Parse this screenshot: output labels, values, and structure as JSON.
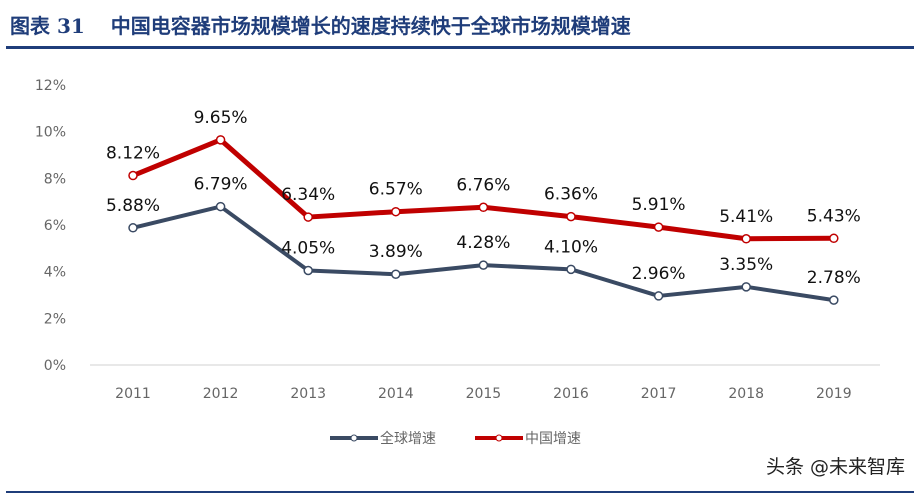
{
  "header": {
    "figure_label": "图表 31",
    "title": "中国电容器市场规模增长的速度持续快于全球市场规模增速"
  },
  "watermark": "头条 @未来智库",
  "chart_data": {
    "type": "line",
    "title": "中国电容器市场规模增长的速度持续快于全球市场规模增速",
    "xlabel": "",
    "ylabel": "",
    "categories": [
      "2011",
      "2012",
      "2013",
      "2014",
      "2015",
      "2016",
      "2017",
      "2018",
      "2019"
    ],
    "ylim": [
      0,
      12
    ],
    "yticks": [
      0,
      2,
      4,
      6,
      8,
      10,
      12
    ],
    "ytick_labels": [
      "0%",
      "2%",
      "4%",
      "6%",
      "8%",
      "10%",
      "12%"
    ],
    "grid": false,
    "legend": "bottom",
    "series": [
      {
        "name": "全球增速",
        "color": "#3a4a63",
        "values": [
          5.88,
          6.79,
          4.05,
          3.89,
          4.28,
          4.1,
          2.96,
          3.35,
          2.78
        ],
        "labels": [
          "5.88%",
          "6.79%",
          "4.05%",
          "3.89%",
          "4.28%",
          "4.10%",
          "2.96%",
          "3.35%",
          "2.78%"
        ]
      },
      {
        "name": "中国增速",
        "color": "#c00000",
        "values": [
          8.12,
          9.65,
          6.34,
          6.57,
          6.76,
          6.36,
          5.91,
          5.41,
          5.43
        ],
        "labels": [
          "8.12%",
          "9.65%",
          "6.34%",
          "6.57%",
          "6.76%",
          "6.36%",
          "5.91%",
          "5.41%",
          "5.43%"
        ]
      }
    ]
  }
}
